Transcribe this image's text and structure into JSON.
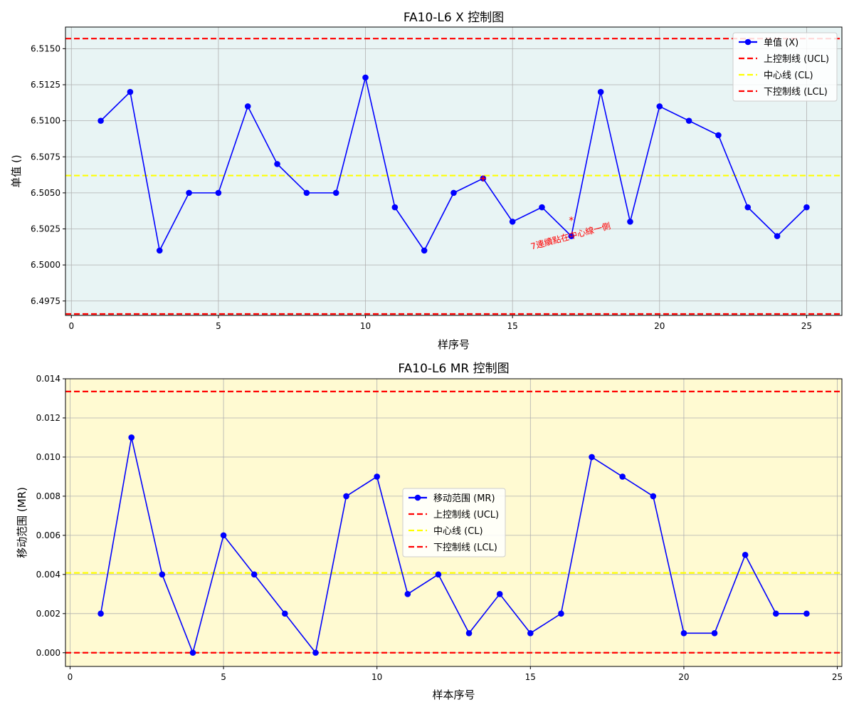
{
  "chart_data": [
    {
      "type": "line",
      "title": "FA10-L6 X 控制图",
      "xlabel": "样序号",
      "ylabel": "单值 ()",
      "background": "#e8f4f4",
      "grid": true,
      "legend_position": "upper right",
      "xlim": [
        -0.2,
        26.2
      ],
      "ylim": [
        6.4965,
        6.5165
      ],
      "xticks": [
        0,
        5,
        10,
        15,
        20,
        25
      ],
      "yticks": [
        6.4975,
        6.5,
        6.5025,
        6.505,
        6.5075,
        6.51,
        6.5125,
        6.515
      ],
      "ytick_labels": [
        "6.4975",
        "6.5000",
        "6.5025",
        "6.5050",
        "6.5075",
        "6.5100",
        "6.5125",
        "6.5150"
      ],
      "series": [
        {
          "name": "单值 (X)",
          "color": "#0000ff",
          "x": [
            1,
            2,
            3,
            4,
            5,
            6,
            7,
            8,
            9,
            10,
            11,
            12,
            13,
            14,
            15,
            16,
            17,
            18,
            19,
            20,
            21,
            22,
            23,
            24,
            25
          ],
          "values": [
            6.51,
            6.512,
            6.501,
            6.505,
            6.505,
            6.511,
            6.507,
            6.505,
            6.505,
            6.513,
            6.504,
            6.501,
            6.505,
            6.506,
            6.503,
            6.504,
            6.502,
            6.512,
            6.503,
            6.511,
            6.51,
            6.509,
            6.504,
            6.502,
            6.504
          ]
        }
      ],
      "control_lines": [
        {
          "name": "上控制线 (UCL)",
          "value": 6.5157,
          "color": "#ff0000"
        },
        {
          "name": "中心线 (CL)",
          "value": 6.5062,
          "color": "#ffff00"
        },
        {
          "name": "下控制线 (LCL)",
          "value": 6.4966,
          "color": "#ff0000"
        }
      ],
      "markers": [
        {
          "x": 14,
          "y": 6.506,
          "symbol": "+",
          "color": "#ff0000"
        },
        {
          "x": 17,
          "y": 6.5031,
          "symbol": "*",
          "color": "#ff0000"
        }
      ],
      "annotations": [
        {
          "text": "7連續點在中心線一側",
          "x": 17,
          "y": 6.5018,
          "rotation": -15,
          "color": "#ff0000"
        }
      ]
    },
    {
      "type": "line",
      "title": "FA10-L6 MR 控制图",
      "xlabel": "样本序号",
      "ylabel": "移动范围 (MR)",
      "background": "#fffad2",
      "grid": true,
      "legend_position": "center",
      "xlim": [
        -0.15,
        25.15
      ],
      "ylim": [
        -0.0007,
        0.014
      ],
      "xticks": [
        0,
        5,
        10,
        15,
        20,
        25
      ],
      "yticks": [
        0.0,
        0.002,
        0.004,
        0.006,
        0.008,
        0.01,
        0.012,
        0.014
      ],
      "ytick_labels": [
        "0.000",
        "0.002",
        "0.004",
        "0.006",
        "0.008",
        "0.010",
        "0.012",
        "0.014"
      ],
      "series": [
        {
          "name": "移动范围 (MR)",
          "color": "#0000ff",
          "x": [
            1,
            2,
            3,
            4,
            5,
            6,
            7,
            8,
            9,
            10,
            11,
            12,
            13,
            14,
            15,
            16,
            17,
            18,
            19,
            20,
            21,
            22,
            23,
            24
          ],
          "values": [
            0.002,
            0.011,
            0.004,
            0.0,
            0.006,
            0.004,
            0.002,
            0.0,
            0.008,
            0.009,
            0.003,
            0.004,
            0.001,
            0.003,
            0.001,
            0.002,
            0.01,
            0.009,
            0.008,
            0.001,
            0.001,
            0.005,
            0.002,
            0.002
          ]
        }
      ],
      "control_lines": [
        {
          "name": "上控制线 (UCL)",
          "value": 0.01335,
          "color": "#ff0000"
        },
        {
          "name": "中心线 (CL)",
          "value": 0.00408,
          "color": "#ffff00"
        },
        {
          "name": "下控制线 (LCL)",
          "value": 0.0,
          "color": "#ff0000"
        }
      ],
      "markers": [
        {
          "x": 6,
          "y": 0.004,
          "symbol": "+",
          "color": "#0000ff"
        },
        {
          "x": 12,
          "y": 0.004,
          "symbol": "+",
          "color": "#0000ff"
        }
      ],
      "annotations": []
    }
  ]
}
